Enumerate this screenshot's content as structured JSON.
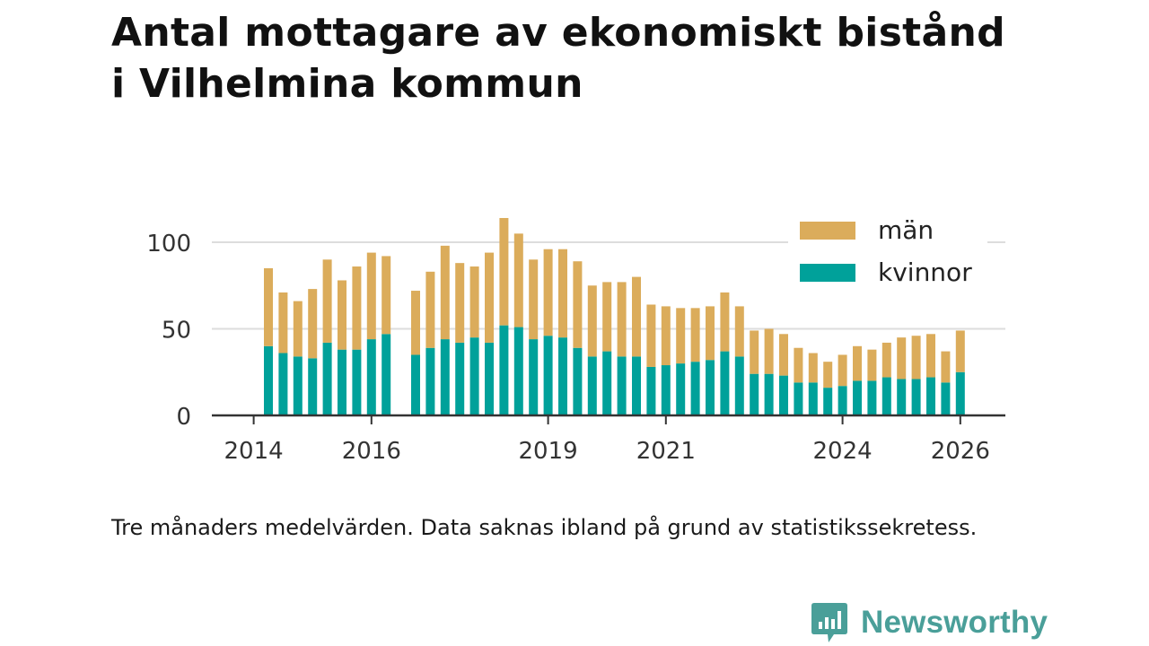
{
  "title_line1": "Antal mottagare av ekonomiskt bistånd",
  "title_line2": "i Vilhelmina kommun",
  "caption": "Tre månaders medelvärden. Data saknas ibland på grund av statistikssekretess.",
  "brand": {
    "name": "Newsworthy",
    "icon": "newsworthy-logo-icon",
    "color": "#4a9f99"
  },
  "colors": {
    "kvinnor": "#00a19a",
    "man": "#dbac5b",
    "grid": "#dddddd",
    "axis": "#333333"
  },
  "chart_data": {
    "type": "bar",
    "stacked": true,
    "title": "Antal mottagare av ekonomiskt bistånd i Vilhelmina kommun",
    "xlabel": "",
    "ylabel": "",
    "ylim": [
      0,
      120
    ],
    "yticks": [
      0,
      50,
      100
    ],
    "xtick_labels": [
      "2014",
      "2016",
      "2019",
      "2021",
      "2024",
      "2026"
    ],
    "xtick_positions": [
      -1,
      7,
      19,
      27,
      39,
      47
    ],
    "legend": {
      "position": "top-right",
      "entries": [
        "män",
        "kvinnor"
      ]
    },
    "period_index": [
      0,
      1,
      2,
      3,
      4,
      5,
      6,
      7,
      8,
      10,
      11,
      12,
      13,
      14,
      15,
      16,
      17,
      18,
      19,
      20,
      21,
      22,
      23,
      24,
      25,
      26,
      27,
      28,
      29,
      30,
      31,
      32,
      33,
      34,
      35,
      36,
      37,
      38,
      39,
      40,
      41,
      42,
      43,
      44,
      45,
      46,
      47
    ],
    "series": [
      {
        "name": "kvinnor",
        "values": [
          40,
          36,
          34,
          33,
          42,
          38,
          38,
          44,
          47,
          35,
          39,
          44,
          42,
          45,
          42,
          52,
          51,
          44,
          46,
          45,
          39,
          34,
          37,
          34,
          34,
          28,
          29,
          30,
          31,
          32,
          37,
          34,
          24,
          24,
          23,
          19,
          19,
          16,
          17,
          20,
          20,
          22,
          21,
          21,
          22,
          19,
          25
        ]
      },
      {
        "name": "män",
        "values": [
          45,
          35,
          32,
          40,
          48,
          40,
          48,
          50,
          45,
          37,
          44,
          54,
          46,
          41,
          52,
          62,
          54,
          46,
          50,
          51,
          50,
          41,
          40,
          43,
          46,
          36,
          34,
          32,
          31,
          31,
          34,
          29,
          25,
          26,
          24,
          20,
          17,
          15,
          18,
          20,
          18,
          20,
          24,
          25,
          25,
          18,
          24
        ]
      }
    ]
  }
}
